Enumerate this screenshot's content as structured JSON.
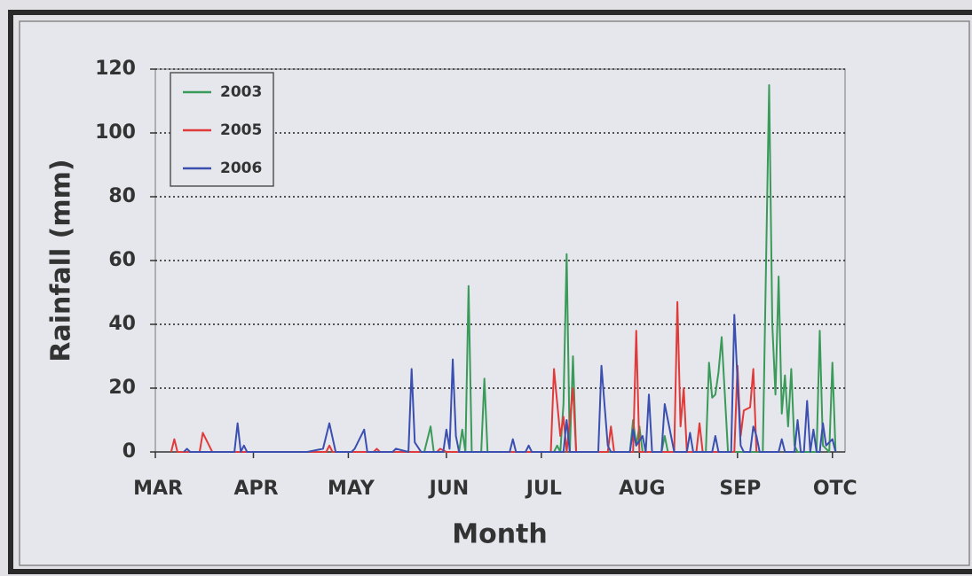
{
  "chart_data": {
    "type": "line",
    "xlabel": "Month",
    "ylabel": "Rainfall (mm)",
    "xlim": [
      0,
      218
    ],
    "ylim": [
      0,
      120
    ],
    "xticks": [
      {
        "value": 0,
        "label": "MAR"
      },
      {
        "value": 31,
        "label": "APR"
      },
      {
        "value": 61,
        "label": "MAY"
      },
      {
        "value": 92,
        "label": "JUN"
      },
      {
        "value": 122,
        "label": "JUL"
      },
      {
        "value": 153,
        "label": "AUG"
      },
      {
        "value": 184,
        "label": "SEP"
      },
      {
        "value": 214,
        "label": "OTC"
      }
    ],
    "yticks": [
      0,
      20,
      40,
      60,
      80,
      100,
      120
    ],
    "grid": true,
    "legend": "upper left",
    "series": [
      {
        "name": "2003",
        "color": "#3a9a5a",
        "x": [
          85,
          87,
          88,
          96,
          97,
          98,
          99,
          100,
          103,
          104,
          105,
          126,
          127,
          128,
          129,
          130,
          131,
          132,
          133,
          150,
          151,
          152,
          153,
          154,
          160,
          161,
          162,
          174,
          175,
          176,
          177,
          178,
          179,
          180,
          181,
          192,
          194,
          195,
          196,
          197,
          198,
          199,
          200,
          201,
          202,
          203,
          209,
          210,
          211,
          213,
          214,
          215
        ],
        "values": [
          0,
          8,
          0,
          0,
          7,
          0,
          52,
          0,
          0,
          23,
          0,
          0,
          2,
          0,
          15,
          62,
          0,
          30,
          0,
          0,
          10,
          2,
          8,
          0,
          0,
          5,
          0,
          0,
          28,
          17,
          18,
          25,
          36,
          18,
          0,
          0,
          115,
          40,
          18,
          55,
          12,
          24,
          8,
          26,
          2,
          0,
          0,
          38,
          2,
          0,
          28,
          0
        ]
      },
      {
        "name": "2005",
        "color": "#e03a3a",
        "x": [
          5,
          6,
          7,
          14,
          15,
          17,
          18,
          54,
          55,
          56,
          69,
          70,
          71,
          89,
          90,
          92,
          125,
          126,
          128,
          129,
          130,
          132,
          133,
          143,
          144,
          145,
          151,
          152,
          153,
          164,
          165,
          166,
          167,
          168,
          171,
          172,
          173,
          183,
          184,
          185,
          186,
          188,
          189,
          190
        ],
        "values": [
          0,
          4,
          0,
          0,
          6,
          2,
          0,
          0,
          2,
          0,
          0,
          1,
          0,
          0,
          1,
          0,
          0,
          26,
          5,
          11,
          0,
          20,
          0,
          0,
          8,
          0,
          0,
          38,
          0,
          0,
          47,
          8,
          20,
          0,
          0,
          9,
          0,
          0,
          27,
          5,
          13,
          14,
          26,
          0
        ]
      },
      {
        "name": "2006",
        "color": "#3a4fb0",
        "x": [
          9,
          10,
          11,
          25,
          26,
          27,
          28,
          29,
          48,
          53,
          55,
          57,
          62,
          63,
          66,
          67,
          75,
          76,
          80,
          81,
          82,
          84,
          91,
          92,
          93,
          94,
          95,
          96,
          112,
          113,
          114,
          117,
          118,
          119,
          129,
          130,
          131,
          140,
          141,
          143,
          144,
          150,
          151,
          152,
          154,
          155,
          156,
          157,
          160,
          161,
          163,
          164,
          168,
          169,
          170,
          176,
          177,
          178,
          182,
          183,
          185,
          186,
          188,
          189,
          190,
          191,
          197,
          198,
          199,
          202,
          203,
          204,
          205,
          206,
          207,
          208,
          209,
          210,
          211,
          212,
          214,
          215
        ],
        "values": [
          0,
          1,
          0,
          0,
          9,
          0,
          2,
          0,
          0,
          1,
          9,
          0,
          0,
          1,
          7,
          0,
          0,
          1,
          0,
          26,
          3,
          0,
          0,
          7,
          1,
          29,
          5,
          0,
          0,
          4,
          0,
          0,
          2,
          0,
          0,
          10,
          0,
          0,
          27,
          2,
          0,
          0,
          7,
          2,
          5,
          0,
          18,
          0,
          0,
          15,
          5,
          0,
          0,
          6,
          0,
          0,
          5,
          0,
          0,
          43,
          2,
          0,
          0,
          8,
          5,
          0,
          0,
          4,
          0,
          0,
          10,
          0,
          0,
          16,
          0,
          7,
          0,
          0,
          9,
          2,
          4,
          0
        ]
      }
    ]
  }
}
